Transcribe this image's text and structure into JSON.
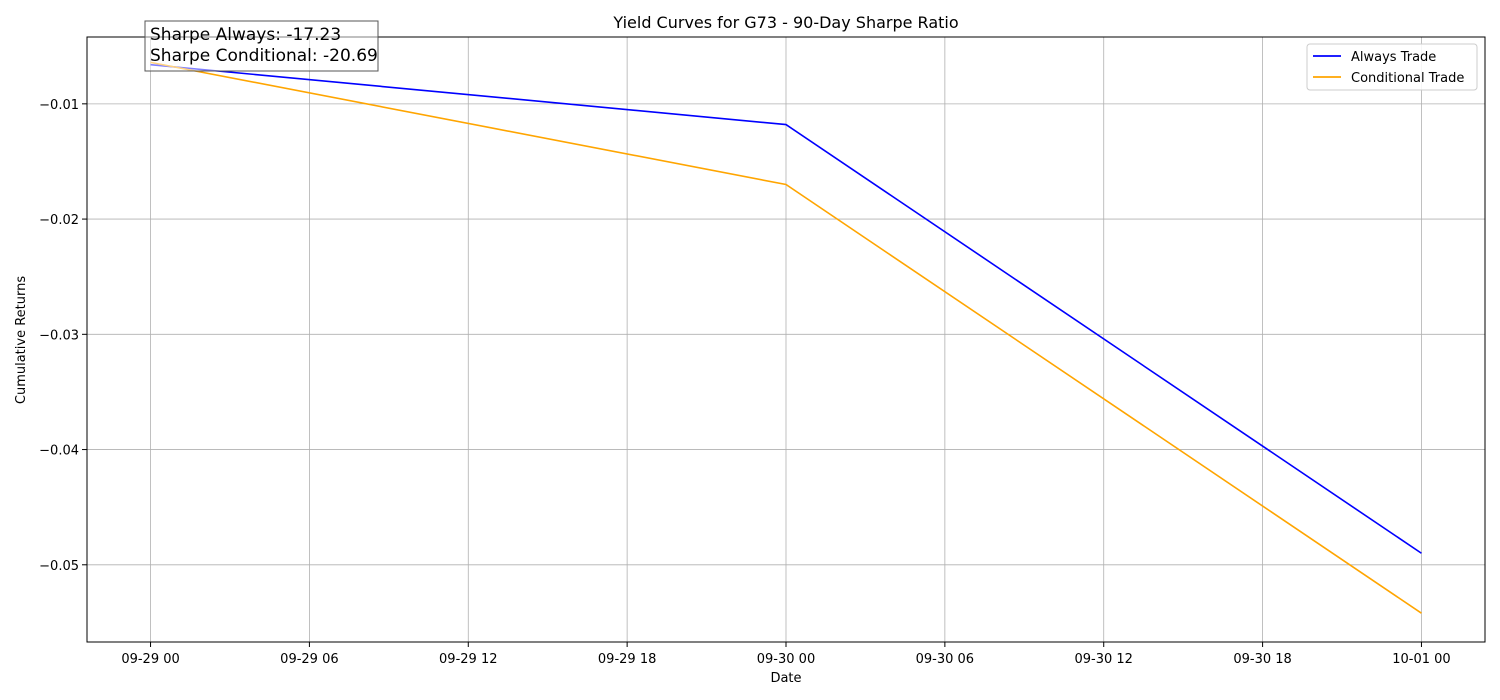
{
  "chart_data": {
    "type": "line",
    "title": "Yield Curves for G73 - 90-Day Sharpe Ratio",
    "xlabel": "Date",
    "ylabel": "Cumulative Returns",
    "x": [
      "2023-09-29 00:00",
      "2023-09-30 00:00",
      "2023-10-01 00:00"
    ],
    "x_ticks": [
      "09-29 00",
      "09-29 06",
      "09-29 12",
      "09-29 18",
      "09-30 00",
      "09-30 06",
      "09-30 12",
      "09-30 18",
      "10-01 00"
    ],
    "y_ticks": [
      "−0.01",
      "−0.02",
      "−0.03",
      "−0.04",
      "−0.05"
    ],
    "y_tick_values": [
      -0.01,
      -0.02,
      -0.03,
      -0.04,
      -0.05
    ],
    "xlim": [
      "2023-09-28 21:36",
      "2023-10-01 02:24"
    ],
    "ylim": [
      -0.0567,
      -0.0042
    ],
    "grid": true,
    "legend_position": "upper right",
    "series": [
      {
        "name": "Always Trade",
        "color": "#0000ff",
        "values": [
          -0.0066,
          -0.0118,
          -0.049
        ]
      },
      {
        "name": "Conditional Trade",
        "color": "#ffa500",
        "values": [
          -0.0064,
          -0.017,
          -0.0542
        ]
      }
    ],
    "annotations": [
      "Sharpe Always: -17.23",
      "Sharpe Conditional: -20.69"
    ]
  }
}
